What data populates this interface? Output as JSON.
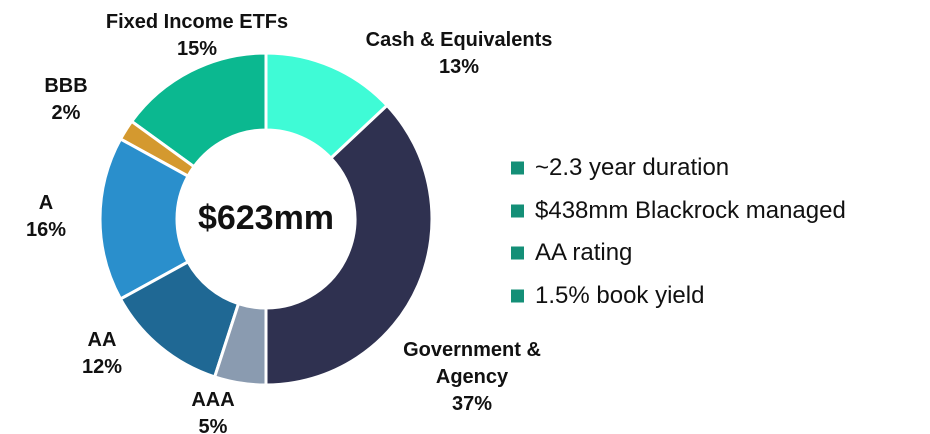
{
  "chart_data": {
    "type": "pie",
    "center_label": "$623mm",
    "categories": [
      "Cash & Equivalents",
      "Government & Agency",
      "AAA",
      "AA",
      "A",
      "BBB",
      "Fixed Income ETFs"
    ],
    "values": [
      13,
      37,
      5,
      12,
      16,
      2,
      15
    ],
    "value_labels": [
      "13%",
      "37%",
      "5%",
      "12%",
      "16%",
      "2%",
      "15%"
    ],
    "colors": [
      "#3ffbd6",
      "#2f3150",
      "#8a9bb0",
      "#1f6894",
      "#2a8fcc",
      "#d4992f",
      "#0bb890"
    ]
  },
  "bullets": [
    "~2.3 year duration",
    "$438mm Blackrock managed",
    "AA rating",
    "1.5% book yield"
  ],
  "bullet_color": "#148f77"
}
